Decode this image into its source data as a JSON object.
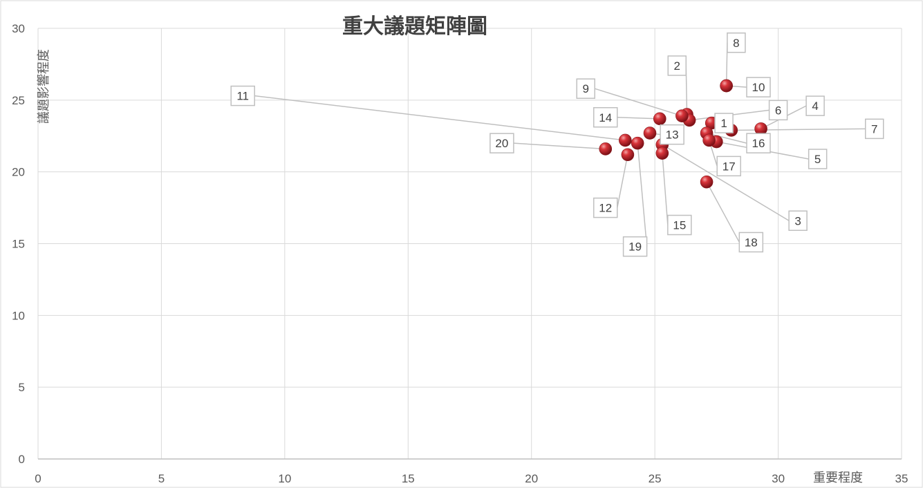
{
  "chart_data": {
    "type": "scatter",
    "title": "重大議題矩陣圖",
    "xlabel": "重要程度",
    "ylabel": "議題影響程度",
    "xlim": [
      0,
      35
    ],
    "ylim": [
      0,
      30
    ],
    "x_ticks": [
      0,
      5,
      10,
      15,
      20,
      25,
      30,
      35
    ],
    "y_ticks": [
      0,
      5,
      10,
      15,
      20,
      25,
      30
    ],
    "grid": true,
    "legend": "none",
    "marker_color": "#c0272d",
    "points": [
      {
        "label": "1",
        "x": 27.3,
        "y": 23.4,
        "label_x": 27.8,
        "label_y": 23.4
      },
      {
        "label": "2",
        "x": 26.3,
        "y": 24.0,
        "label_x": 25.9,
        "label_y": 27.4
      },
      {
        "label": "3",
        "x": 25.3,
        "y": 21.9,
        "label_x": 30.8,
        "label_y": 16.6
      },
      {
        "label": "4",
        "x": 29.3,
        "y": 23.0,
        "label_x": 31.5,
        "label_y": 24.6
      },
      {
        "label": "5",
        "x": 27.5,
        "y": 22.1,
        "label_x": 31.6,
        "label_y": 20.9
      },
      {
        "label": "6",
        "x": 26.4,
        "y": 23.6,
        "label_x": 30.0,
        "label_y": 24.3
      },
      {
        "label": "7",
        "x": 28.1,
        "y": 22.9,
        "label_x": 33.9,
        "label_y": 23.0
      },
      {
        "label": "8",
        "x": 27.9,
        "y": 26.0,
        "label_x": 28.3,
        "label_y": 29.0
      },
      {
        "label": "9",
        "x": 26.1,
        "y": 23.9,
        "label_x": 22.2,
        "label_y": 25.8
      },
      {
        "label": "10",
        "x": 27.9,
        "y": 26.0,
        "label_x": 29.2,
        "label_y": 25.9
      },
      {
        "label": "11",
        "x": 23.8,
        "y": 22.2,
        "label_x": 8.3,
        "label_y": 25.3
      },
      {
        "label": "12",
        "x": 23.9,
        "y": 21.2,
        "label_x": 23.0,
        "label_y": 17.5
      },
      {
        "label": "13",
        "x": 24.8,
        "y": 22.7,
        "label_x": 25.7,
        "label_y": 22.6
      },
      {
        "label": "14",
        "x": 25.2,
        "y": 23.7,
        "label_x": 23.0,
        "label_y": 23.8
      },
      {
        "label": "15",
        "x": 25.3,
        "y": 21.3,
        "label_x": 26.0,
        "label_y": 16.3
      },
      {
        "label": "16",
        "x": 27.1,
        "y": 22.7,
        "label_x": 29.2,
        "label_y": 22.0
      },
      {
        "label": "17",
        "x": 27.2,
        "y": 22.2,
        "label_x": 28.0,
        "label_y": 20.4
      },
      {
        "label": "18",
        "x": 27.1,
        "y": 19.3,
        "label_x": 28.9,
        "label_y": 15.1
      },
      {
        "label": "19",
        "x": 24.3,
        "y": 22.0,
        "label_x": 24.2,
        "label_y": 14.8
      },
      {
        "label": "20",
        "x": 23.0,
        "y": 21.6,
        "label_x": 18.8,
        "label_y": 22.0
      }
    ]
  }
}
